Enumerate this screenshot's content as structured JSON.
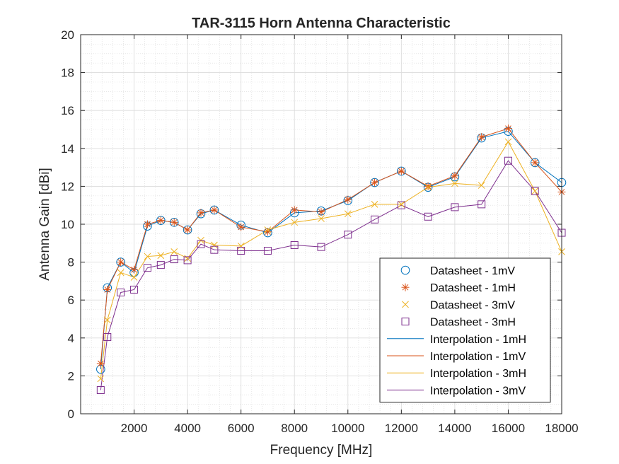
{
  "chart_data": {
    "type": "line",
    "title": "TAR-3115 Horn Antenna Characteristic",
    "xlabel": "Frequency [MHz]",
    "ylabel": "Antenna Gain [dBi]",
    "xlim": [
      0,
      18000
    ],
    "ylim": [
      0,
      20
    ],
    "xticks": [
      2000,
      4000,
      6000,
      8000,
      10000,
      12000,
      14000,
      16000,
      18000
    ],
    "yticks": [
      0,
      2,
      4,
      6,
      8,
      10,
      12,
      14,
      16,
      18,
      20
    ],
    "grid": true,
    "minor_grid": true,
    "legend_position": "bottom-right",
    "x": [
      750,
      1000,
      1500,
      2000,
      2500,
      3000,
      3500,
      4000,
      4500,
      5000,
      6000,
      7000,
      8000,
      9000,
      10000,
      11000,
      12000,
      13000,
      14000,
      15000,
      16000,
      17000,
      18000
    ],
    "series": [
      {
        "name": "Datasheet - 1mV",
        "kind": "marker",
        "marker": "circle",
        "color": "#0072BD",
        "values": [
          2.35,
          6.65,
          8.0,
          7.45,
          9.9,
          10.2,
          10.1,
          9.7,
          10.55,
          10.75,
          9.95,
          9.55,
          10.6,
          10.7,
          11.25,
          12.2,
          12.8,
          11.95,
          12.5,
          14.55,
          14.9,
          13.25,
          12.2
        ]
      },
      {
        "name": "Datasheet - 1mH",
        "kind": "marker",
        "marker": "asterisk",
        "color": "#D95319",
        "values": [
          2.65,
          6.55,
          8.0,
          7.6,
          10.0,
          10.2,
          10.1,
          9.7,
          10.6,
          10.75,
          9.85,
          9.6,
          10.75,
          10.65,
          11.3,
          12.2,
          12.8,
          12.0,
          12.55,
          14.6,
          15.05,
          13.25,
          11.7
        ]
      },
      {
        "name": "Datasheet - 3mV",
        "kind": "marker",
        "marker": "x",
        "color": "#EDB120",
        "values": [
          1.85,
          4.95,
          7.45,
          7.2,
          8.3,
          8.35,
          8.55,
          8.2,
          9.15,
          8.9,
          8.85,
          9.7,
          10.1,
          10.3,
          10.55,
          11.05,
          11.05,
          11.95,
          12.15,
          12.05,
          14.35,
          11.75,
          8.55
        ]
      },
      {
        "name": "Datasheet - 3mH",
        "kind": "marker",
        "marker": "square",
        "color": "#7E2F8E",
        "values": [
          1.25,
          4.05,
          6.4,
          6.55,
          7.7,
          7.85,
          8.15,
          8.1,
          8.95,
          8.65,
          8.6,
          8.6,
          8.9,
          8.8,
          9.45,
          10.25,
          11.0,
          10.4,
          10.9,
          11.05,
          13.35,
          11.75,
          9.55
        ]
      },
      {
        "name": "Interpolation - 1mH",
        "kind": "line",
        "color": "#0072BD",
        "values": [
          2.35,
          6.65,
          8.0,
          7.45,
          9.9,
          10.2,
          10.1,
          9.7,
          10.55,
          10.75,
          9.95,
          9.55,
          10.6,
          10.7,
          11.25,
          12.2,
          12.8,
          11.95,
          12.5,
          14.55,
          14.9,
          13.25,
          12.2
        ]
      },
      {
        "name": "Interpolation - 1mV",
        "kind": "line",
        "color": "#D95319",
        "values": [
          2.65,
          6.55,
          8.0,
          7.6,
          10.0,
          10.2,
          10.1,
          9.7,
          10.6,
          10.75,
          9.85,
          9.6,
          10.75,
          10.65,
          11.3,
          12.2,
          12.8,
          12.0,
          12.55,
          14.6,
          15.05,
          13.25,
          11.7
        ]
      },
      {
        "name": "Interpolation - 3mH",
        "kind": "line",
        "color": "#EDB120",
        "values": [
          1.85,
          4.95,
          7.45,
          7.2,
          8.3,
          8.35,
          8.55,
          8.2,
          9.15,
          8.9,
          8.85,
          9.7,
          10.1,
          10.3,
          10.55,
          11.05,
          11.05,
          11.95,
          12.15,
          12.05,
          14.35,
          11.75,
          8.55
        ]
      },
      {
        "name": "Interpolation - 3mV",
        "kind": "line",
        "color": "#7E2F8E",
        "values": [
          1.25,
          4.05,
          6.4,
          6.55,
          7.7,
          7.85,
          8.15,
          8.1,
          8.95,
          8.65,
          8.6,
          8.6,
          8.9,
          8.8,
          9.45,
          10.25,
          11.0,
          10.4,
          10.9,
          11.05,
          13.35,
          11.75,
          9.55
        ]
      }
    ]
  }
}
